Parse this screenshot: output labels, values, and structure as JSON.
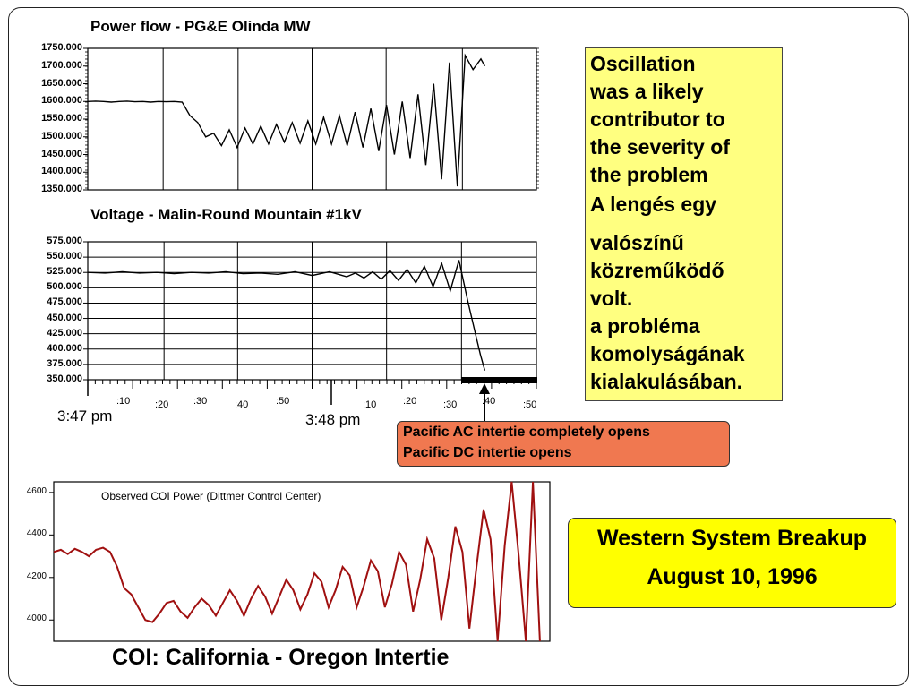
{
  "chart_data": [
    {
      "type": "line",
      "title": "Power flow - PG&E Olinda MW",
      "ylim": [
        1350,
        1750
      ],
      "ytick_labels": [
        "1750.000",
        "1700.000",
        "1650.000",
        "1600.000",
        "1550.000",
        "1500.000",
        "1450.000",
        "1400.000",
        "1350.000"
      ],
      "series": [
        {
          "x": [
            0,
            2,
            4,
            6,
            8,
            10,
            12,
            14,
            16,
            18,
            20,
            22,
            24,
            26,
            28,
            30,
            32,
            34,
            36,
            38,
            40,
            42,
            44,
            46,
            48,
            50,
            52,
            54,
            56,
            58,
            60,
            62,
            64,
            66,
            68,
            70,
            72,
            74,
            76,
            78,
            80,
            82,
            84,
            86,
            88,
            90,
            92,
            94,
            96,
            98,
            100,
            101
          ],
          "y": [
            1600,
            1601,
            1600,
            1598,
            1600,
            1601,
            1599,
            1600,
            1598,
            1600,
            1599,
            1600,
            1598,
            1560,
            1540,
            1500,
            1510,
            1475,
            1520,
            1470,
            1525,
            1480,
            1530,
            1480,
            1535,
            1485,
            1540,
            1482,
            1545,
            1480,
            1555,
            1480,
            1560,
            1475,
            1570,
            1470,
            1580,
            1460,
            1590,
            1450,
            1600,
            1440,
            1620,
            1420,
            1650,
            1380,
            1710,
            1360,
            1730,
            1690,
            1720,
            1700
          ]
        }
      ]
    },
    {
      "type": "line",
      "title": "Voltage - Malin-Round Mountain #1kV",
      "ylim": [
        350,
        575
      ],
      "ytick_labels": [
        "575.000",
        "550.000",
        "525.000",
        "500.000",
        "475.000",
        "450.000",
        "425.000",
        "400.000",
        "375.000",
        "350.000"
      ],
      "xtick_labels": [
        ":10",
        ":20",
        ":30",
        ":40",
        ":50",
        ":10",
        ":20",
        ":30",
        ":40",
        ":50"
      ],
      "x_major_labels": [
        "3:47 pm",
        "3:48 pm"
      ],
      "series": [
        {
          "x": [
            0,
            4,
            8,
            12,
            16,
            20,
            24,
            28,
            32,
            36,
            40,
            44,
            48,
            52,
            56,
            60,
            62,
            64,
            66,
            68,
            70,
            72,
            74,
            76,
            78,
            80,
            82,
            84,
            86,
            88,
            89,
            90,
            91,
            92
          ],
          "y": [
            525,
            524,
            526,
            524,
            525,
            523,
            525,
            524,
            526,
            523,
            524,
            522,
            526,
            520,
            526,
            518,
            524,
            516,
            526,
            514,
            528,
            512,
            530,
            508,
            535,
            502,
            540,
            495,
            545,
            480,
            450,
            420,
            390,
            365
          ]
        }
      ]
    },
    {
      "type": "line",
      "title": "Observed COI Power (Dittmer Control Center)",
      "ylim": [
        3900,
        4650
      ],
      "ytick_labels": [
        "4600",
        "4400",
        "4200",
        "4000"
      ],
      "series": [
        {
          "x": [
            0,
            3,
            6,
            9,
            12,
            15,
            18,
            21,
            24,
            27,
            30,
            33,
            36,
            39,
            42,
            45,
            48,
            51,
            54,
            57,
            60,
            63,
            66,
            69,
            72,
            75,
            78,
            81,
            84,
            87,
            90,
            93,
            96,
            99,
            102,
            105,
            108,
            111,
            114,
            117,
            120,
            123,
            126,
            129,
            132,
            135,
            138,
            141,
            144,
            147,
            150,
            153,
            156,
            159,
            162,
            165,
            168,
            171,
            174,
            177,
            180,
            183,
            186,
            189,
            192,
            195,
            198,
            201,
            204,
            207
          ],
          "y": [
            4320,
            4330,
            4310,
            4335,
            4320,
            4300,
            4330,
            4340,
            4320,
            4250,
            4150,
            4120,
            4060,
            4000,
            3990,
            4030,
            4080,
            4090,
            4040,
            4010,
            4060,
            4100,
            4070,
            4020,
            4080,
            4140,
            4090,
            4020,
            4100,
            4160,
            4110,
            4030,
            4110,
            4190,
            4140,
            4050,
            4120,
            4220,
            4180,
            4060,
            4140,
            4250,
            4210,
            4060,
            4160,
            4280,
            4230,
            4060,
            4170,
            4320,
            4260,
            4040,
            4190,
            4380,
            4290,
            4000,
            4200,
            4440,
            4320,
            3960,
            4250,
            4520,
            4380,
            3900,
            4350,
            4650,
            4300,
            3900,
            4650,
            3900
          ]
        }
      ]
    }
  ],
  "callout": {
    "line1": "Pacific AC intertie completely opens",
    "line2": "Pacific DC intertie opens"
  },
  "note_box": {
    "lines_top": [
      "Oscillation",
      "was a likely",
      "contributor to",
      "the severity of",
      "the problem",
      "A lengés egy"
    ],
    "lines_bottom": [
      "valószínű",
      "közreműködő",
      "volt.",
      "a probléma",
      "komolyságának",
      "kialakulásában."
    ]
  },
  "coi_caption": "COI: California - Oregon Intertie",
  "wsb": {
    "line1": "Western System Breakup",
    "line2": "August 10, 1996"
  },
  "colors": {
    "note_bg": "#ffff80",
    "callout_bg": "#f07850",
    "wsb_bg": "#ffff00",
    "coi_line": "#a01010"
  }
}
